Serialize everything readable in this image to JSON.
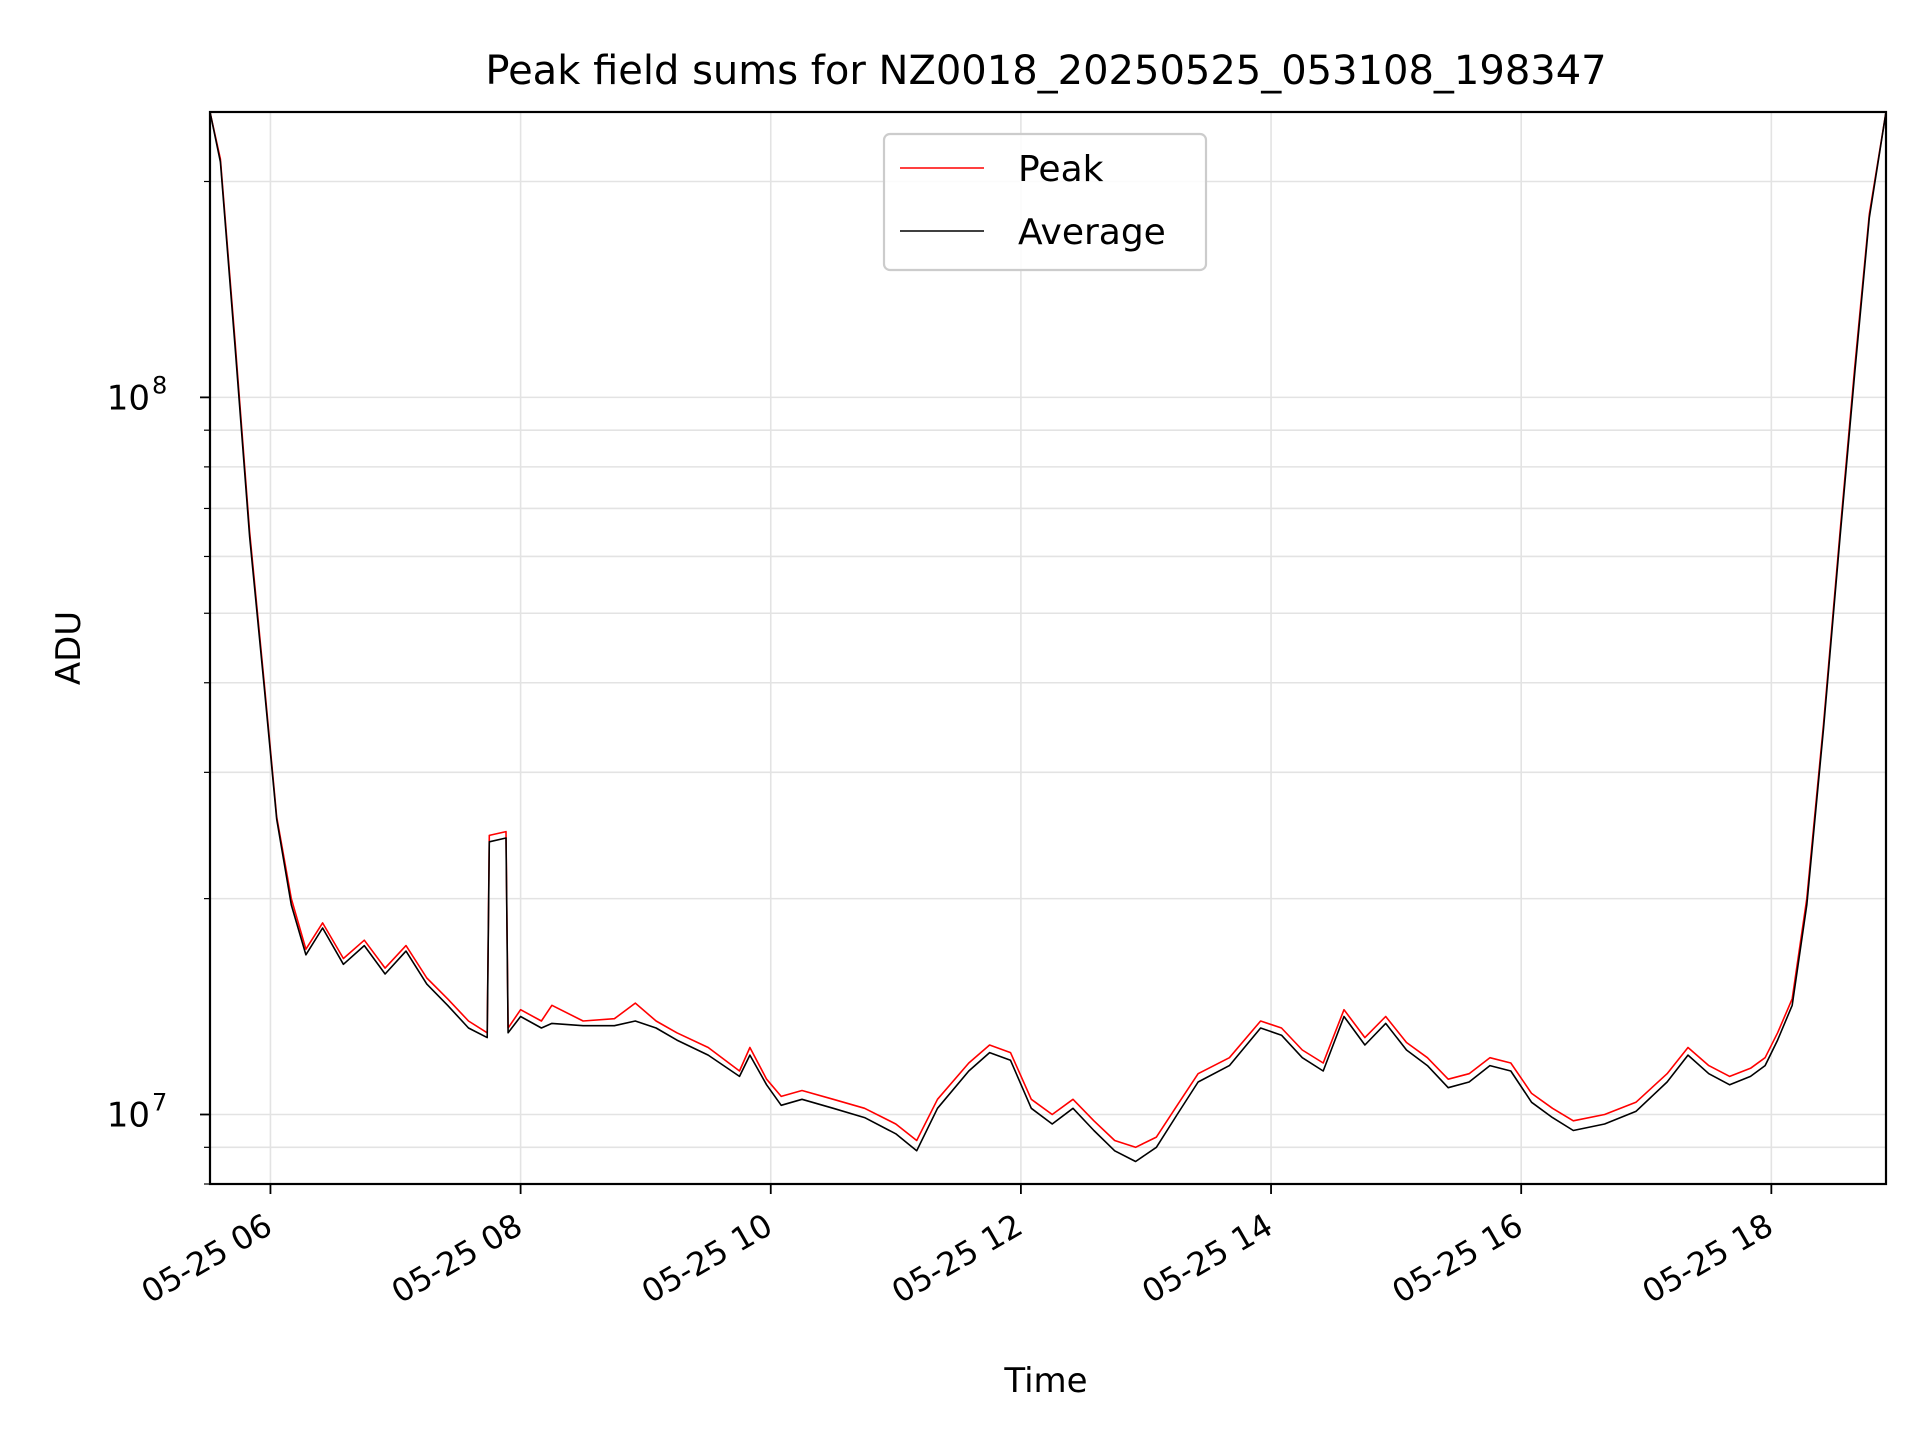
{
  "chart_data": {
    "type": "line",
    "title": "Peak field sums for NZ0018_20250525_053108_198347",
    "xlabel": "Time",
    "ylabel": "ADU",
    "yscale": "log",
    "ylim": [
      8000000,
      250000000
    ],
    "xlim": [
      "2025-05-25 05:31",
      "2025-05-25 18:55"
    ],
    "grid": true,
    "legend_position": "top-center",
    "x_ticks": [
      {
        "t": "2025-05-25 06:00",
        "label": "05-25 06"
      },
      {
        "t": "2025-05-25 08:00",
        "label": "05-25 08"
      },
      {
        "t": "2025-05-25 10:00",
        "label": "05-25 10"
      },
      {
        "t": "2025-05-25 12:00",
        "label": "05-25 12"
      },
      {
        "t": "2025-05-25 14:00",
        "label": "05-25 14"
      },
      {
        "t": "2025-05-25 16:00",
        "label": "05-25 16"
      },
      {
        "t": "2025-05-25 18:00",
        "label": "05-25 18"
      }
    ],
    "y_ticks": [
      {
        "value": 10000000,
        "base": "10",
        "exp": "7"
      },
      {
        "value": 100000000,
        "base": "10",
        "exp": "8"
      }
    ],
    "series": [
      {
        "name": "Peak",
        "color": "#ff0000",
        "points": [
          [
            "2025-05-25 05:31",
            250000000
          ],
          [
            "2025-05-25 05:36",
            215000000
          ],
          [
            "2025-05-25 05:43",
            120000000
          ],
          [
            "2025-05-25 05:50",
            65000000
          ],
          [
            "2025-05-25 05:57",
            40000000
          ],
          [
            "2025-05-25 06:03",
            26000000
          ],
          [
            "2025-05-25 06:10",
            20000000
          ],
          [
            "2025-05-25 06:17",
            17000000
          ],
          [
            "2025-05-25 06:25",
            18500000
          ],
          [
            "2025-05-25 06:35",
            16500000
          ],
          [
            "2025-05-25 06:45",
            17500000
          ],
          [
            "2025-05-25 06:55",
            16000000
          ],
          [
            "2025-05-25 07:05",
            17200000
          ],
          [
            "2025-05-25 07:15",
            15500000
          ],
          [
            "2025-05-25 07:25",
            14500000
          ],
          [
            "2025-05-25 07:35",
            13500000
          ],
          [
            "2025-05-25 07:44",
            13000000
          ],
          [
            "2025-05-25 07:45",
            24500000
          ],
          [
            "2025-05-25 07:53",
            24800000
          ],
          [
            "2025-05-25 07:54",
            13200000
          ],
          [
            "2025-05-25 08:00",
            14000000
          ],
          [
            "2025-05-25 08:10",
            13500000
          ],
          [
            "2025-05-25 08:15",
            14200000
          ],
          [
            "2025-05-25 08:30",
            13500000
          ],
          [
            "2025-05-25 08:45",
            13600000
          ],
          [
            "2025-05-25 08:55",
            14300000
          ],
          [
            "2025-05-25 09:05",
            13500000
          ],
          [
            "2025-05-25 09:15",
            13000000
          ],
          [
            "2025-05-25 09:30",
            12400000
          ],
          [
            "2025-05-25 09:45",
            11500000
          ],
          [
            "2025-05-25 09:50",
            12400000
          ],
          [
            "2025-05-25 09:58",
            11200000
          ],
          [
            "2025-05-25 10:05",
            10600000
          ],
          [
            "2025-05-25 10:15",
            10800000
          ],
          [
            "2025-05-25 10:30",
            10500000
          ],
          [
            "2025-05-25 10:45",
            10200000
          ],
          [
            "2025-05-25 11:00",
            9700000
          ],
          [
            "2025-05-25 11:10",
            9200000
          ],
          [
            "2025-05-25 11:20",
            10500000
          ],
          [
            "2025-05-25 11:35",
            11800000
          ],
          [
            "2025-05-25 11:45",
            12500000
          ],
          [
            "2025-05-25 11:55",
            12200000
          ],
          [
            "2025-05-25 12:05",
            10500000
          ],
          [
            "2025-05-25 12:15",
            10000000
          ],
          [
            "2025-05-25 12:25",
            10500000
          ],
          [
            "2025-05-25 12:35",
            9800000
          ],
          [
            "2025-05-25 12:45",
            9200000
          ],
          [
            "2025-05-25 12:55",
            9000000
          ],
          [
            "2025-05-25 13:05",
            9300000
          ],
          [
            "2025-05-25 13:15",
            10300000
          ],
          [
            "2025-05-25 13:25",
            11400000
          ],
          [
            "2025-05-25 13:40",
            12000000
          ],
          [
            "2025-05-25 13:55",
            13500000
          ],
          [
            "2025-05-25 14:05",
            13200000
          ],
          [
            "2025-05-25 14:15",
            12300000
          ],
          [
            "2025-05-25 14:25",
            11800000
          ],
          [
            "2025-05-25 14:35",
            14000000
          ],
          [
            "2025-05-25 14:45",
            12800000
          ],
          [
            "2025-05-25 14:55",
            13700000
          ],
          [
            "2025-05-25 15:05",
            12600000
          ],
          [
            "2025-05-25 15:15",
            12000000
          ],
          [
            "2025-05-25 15:25",
            11200000
          ],
          [
            "2025-05-25 15:35",
            11400000
          ],
          [
            "2025-05-25 15:45",
            12000000
          ],
          [
            "2025-05-25 15:55",
            11800000
          ],
          [
            "2025-05-25 16:05",
            10700000
          ],
          [
            "2025-05-25 16:15",
            10200000
          ],
          [
            "2025-05-25 16:25",
            9800000
          ],
          [
            "2025-05-25 16:40",
            10000000
          ],
          [
            "2025-05-25 16:55",
            10400000
          ],
          [
            "2025-05-25 17:10",
            11400000
          ],
          [
            "2025-05-25 17:20",
            12400000
          ],
          [
            "2025-05-25 17:30",
            11700000
          ],
          [
            "2025-05-25 17:40",
            11300000
          ],
          [
            "2025-05-25 17:50",
            11600000
          ],
          [
            "2025-05-25 17:57",
            12000000
          ],
          [
            "2025-05-25 18:03",
            13000000
          ],
          [
            "2025-05-25 18:10",
            14500000
          ],
          [
            "2025-05-25 18:17",
            20000000
          ],
          [
            "2025-05-25 18:25",
            35000000
          ],
          [
            "2025-05-25 18:33",
            65000000
          ],
          [
            "2025-05-25 18:40",
            110000000
          ],
          [
            "2025-05-25 18:47",
            180000000
          ],
          [
            "2025-05-25 18:55",
            250000000
          ]
        ]
      },
      {
        "name": "Average",
        "color": "#000000",
        "points": [
          [
            "2025-05-25 05:31",
            250000000
          ],
          [
            "2025-05-25 05:36",
            213000000
          ],
          [
            "2025-05-25 05:43",
            118000000
          ],
          [
            "2025-05-25 05:50",
            64000000
          ],
          [
            "2025-05-25 05:57",
            39500000
          ],
          [
            "2025-05-25 06:03",
            25800000
          ],
          [
            "2025-05-25 06:10",
            19600000
          ],
          [
            "2025-05-25 06:17",
            16700000
          ],
          [
            "2025-05-25 06:25",
            18200000
          ],
          [
            "2025-05-25 06:35",
            16200000
          ],
          [
            "2025-05-25 06:45",
            17200000
          ],
          [
            "2025-05-25 06:55",
            15700000
          ],
          [
            "2025-05-25 07:05",
            16900000
          ],
          [
            "2025-05-25 07:15",
            15200000
          ],
          [
            "2025-05-25 07:25",
            14200000
          ],
          [
            "2025-05-25 07:35",
            13200000
          ],
          [
            "2025-05-25 07:44",
            12800000
          ],
          [
            "2025-05-25 07:45",
            24000000
          ],
          [
            "2025-05-25 07:53",
            24300000
          ],
          [
            "2025-05-25 07:54",
            13000000
          ],
          [
            "2025-05-25 08:00",
            13700000
          ],
          [
            "2025-05-25 08:10",
            13200000
          ],
          [
            "2025-05-25 08:15",
            13400000
          ],
          [
            "2025-05-25 08:30",
            13300000
          ],
          [
            "2025-05-25 08:45",
            13300000
          ],
          [
            "2025-05-25 08:55",
            13500000
          ],
          [
            "2025-05-25 09:05",
            13200000
          ],
          [
            "2025-05-25 09:15",
            12700000
          ],
          [
            "2025-05-25 09:30",
            12100000
          ],
          [
            "2025-05-25 09:45",
            11300000
          ],
          [
            "2025-05-25 09:50",
            12100000
          ],
          [
            "2025-05-25 09:58",
            11000000
          ],
          [
            "2025-05-25 10:05",
            10300000
          ],
          [
            "2025-05-25 10:15",
            10500000
          ],
          [
            "2025-05-25 10:30",
            10200000
          ],
          [
            "2025-05-25 10:45",
            9900000
          ],
          [
            "2025-05-25 11:00",
            9400000
          ],
          [
            "2025-05-25 11:10",
            8900000
          ],
          [
            "2025-05-25 11:20",
            10200000
          ],
          [
            "2025-05-25 11:35",
            11500000
          ],
          [
            "2025-05-25 11:45",
            12200000
          ],
          [
            "2025-05-25 11:55",
            11900000
          ],
          [
            "2025-05-25 12:05",
            10200000
          ],
          [
            "2025-05-25 12:15",
            9700000
          ],
          [
            "2025-05-25 12:25",
            10200000
          ],
          [
            "2025-05-25 12:35",
            9500000
          ],
          [
            "2025-05-25 12:45",
            8900000
          ],
          [
            "2025-05-25 12:55",
            8600000
          ],
          [
            "2025-05-25 13:05",
            9000000
          ],
          [
            "2025-05-25 13:15",
            10000000
          ],
          [
            "2025-05-25 13:25",
            11100000
          ],
          [
            "2025-05-25 13:40",
            11700000
          ],
          [
            "2025-05-25 13:55",
            13200000
          ],
          [
            "2025-05-25 14:05",
            12900000
          ],
          [
            "2025-05-25 14:15",
            12000000
          ],
          [
            "2025-05-25 14:25",
            11500000
          ],
          [
            "2025-05-25 14:35",
            13700000
          ],
          [
            "2025-05-25 14:45",
            12500000
          ],
          [
            "2025-05-25 14:55",
            13400000
          ],
          [
            "2025-05-25 15:05",
            12300000
          ],
          [
            "2025-05-25 15:15",
            11700000
          ],
          [
            "2025-05-25 15:25",
            10900000
          ],
          [
            "2025-05-25 15:35",
            11100000
          ],
          [
            "2025-05-25 15:45",
            11700000
          ],
          [
            "2025-05-25 15:55",
            11500000
          ],
          [
            "2025-05-25 16:05",
            10400000
          ],
          [
            "2025-05-25 16:15",
            9900000
          ],
          [
            "2025-05-25 16:25",
            9500000
          ],
          [
            "2025-05-25 16:40",
            9700000
          ],
          [
            "2025-05-25 16:55",
            10100000
          ],
          [
            "2025-05-25 17:10",
            11100000
          ],
          [
            "2025-05-25 17:20",
            12100000
          ],
          [
            "2025-05-25 17:30",
            11400000
          ],
          [
            "2025-05-25 17:40",
            11000000
          ],
          [
            "2025-05-25 17:50",
            11300000
          ],
          [
            "2025-05-25 17:57",
            11700000
          ],
          [
            "2025-05-25 18:03",
            12700000
          ],
          [
            "2025-05-25 18:10",
            14200000
          ],
          [
            "2025-05-25 18:17",
            19600000
          ],
          [
            "2025-05-25 18:25",
            34500000
          ],
          [
            "2025-05-25 18:33",
            64000000
          ],
          [
            "2025-05-25 18:40",
            108000000
          ],
          [
            "2025-05-25 18:47",
            178000000
          ],
          [
            "2025-05-25 18:55",
            250000000
          ]
        ]
      }
    ]
  }
}
